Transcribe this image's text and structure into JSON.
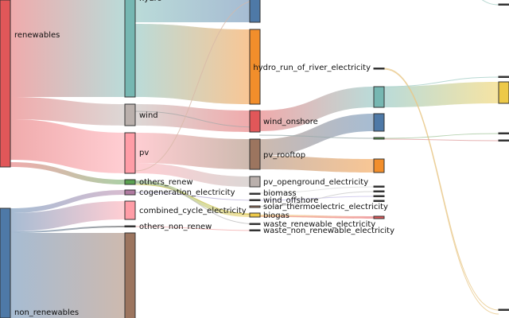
{
  "chart_data": {
    "type": "sankey",
    "title": "",
    "nodes": [
      {
        "id": "renewables",
        "label": "renewables",
        "color": "#e15759"
      },
      {
        "id": "non_renewables",
        "label": "non_renewables",
        "color": "#4e79a7"
      },
      {
        "id": "hydro",
        "label": "hydro",
        "color": "#76b7b2"
      },
      {
        "id": "wind",
        "label": "wind",
        "color": "#bab0ac"
      },
      {
        "id": "pv",
        "label": "pv",
        "color": "#ff9da7"
      },
      {
        "id": "others_renew",
        "label": "others_renew",
        "color": "#59a14f"
      },
      {
        "id": "cogeneration_electricity",
        "label": "cogeneration_electricity",
        "color": "#b07aa1"
      },
      {
        "id": "combined_cycle_electricity",
        "label": "combined_cycle_electricity",
        "color": "#ff9da7"
      },
      {
        "id": "others_non_renew",
        "label": "others_non_renew",
        "color": "#333333"
      },
      {
        "id": "nuclear",
        "label": "",
        "color": "#9c755f"
      },
      {
        "id": "hydro_reservoir",
        "label": "",
        "color": "#4e79a7"
      },
      {
        "id": "hydro_other",
        "label": "",
        "color": "#f28e2b"
      },
      {
        "id": "wind_onshore",
        "label": "wind_onshore",
        "color": "#e15759"
      },
      {
        "id": "pv_rooftop",
        "label": "pv_rooftop",
        "color": "#9c755f"
      },
      {
        "id": "pv_openground_electricity",
        "label": "pv_openground_electricity",
        "color": "#bab0ac"
      },
      {
        "id": "biomass",
        "label": "biomass",
        "color": "#333333"
      },
      {
        "id": "wind_offshore",
        "label": "wind_offshore",
        "color": "#333333"
      },
      {
        "id": "solar_thermoelectric_electricity",
        "label": "solar_thermoelectric_electricity",
        "color": "#9c755f"
      },
      {
        "id": "biogas",
        "label": "biogas",
        "color": "#edc948"
      },
      {
        "id": "waste_renewable_electricity",
        "label": "waste_renewable_electricity",
        "color": "#333333"
      },
      {
        "id": "waste_non_renewable_electricity",
        "label": "waste_non_renewable_electricity",
        "color": "#333333"
      },
      {
        "id": "hydro_run_of_river_electricity",
        "label": "hydro_run_of_river_electricity",
        "color": "#333333"
      },
      {
        "id": "c3_teal",
        "label": "",
        "color": "#76b7b2"
      },
      {
        "id": "c3_blue",
        "label": "",
        "color": "#4e79a7"
      },
      {
        "id": "c3_green",
        "label": "",
        "color": "#59a14f"
      },
      {
        "id": "c3_orange",
        "label": "",
        "color": "#f28e2b"
      },
      {
        "id": "c3_a",
        "label": "",
        "color": "#333333"
      },
      {
        "id": "c3_b",
        "label": "",
        "color": "#333333"
      },
      {
        "id": "c3_c",
        "label": "",
        "color": "#333333"
      },
      {
        "id": "c3_d",
        "label": "",
        "color": "#333333"
      },
      {
        "id": "c3_pink",
        "label": "",
        "color": "#e15759"
      },
      {
        "id": "c4_top",
        "label": "",
        "color": "#333333"
      },
      {
        "id": "c4_a",
        "label": "",
        "color": "#333333"
      },
      {
        "id": "c4_yellow",
        "label": "",
        "color": "#edc948"
      },
      {
        "id": "c4_b",
        "label": "",
        "color": "#333333"
      },
      {
        "id": "c4_c",
        "label": "",
        "color": "#333333"
      },
      {
        "id": "c4_bottom",
        "label": "",
        "color": "#333333"
      }
    ],
    "links": [
      {
        "source": "renewables",
        "target": "hydro",
        "value": 122
      },
      {
        "source": "renewables",
        "target": "wind",
        "value": 27
      },
      {
        "source": "renewables",
        "target": "pv",
        "value": 51
      },
      {
        "source": "renewables",
        "target": "others_renew",
        "value": 6
      },
      {
        "source": "non_renewables",
        "target": "cogeneration_electricity",
        "value": 6
      },
      {
        "source": "non_renewables",
        "target": "combined_cycle_electricity",
        "value": 23
      },
      {
        "source": "non_renewables",
        "target": "others_non_renew",
        "value": 2
      },
      {
        "source": "non_renewables",
        "target": "nuclear",
        "value": 107
      },
      {
        "source": "hydro",
        "target": "hydro_reservoir",
        "value": 28
      },
      {
        "source": "hydro",
        "target": "hydro_other",
        "value": 94
      },
      {
        "source": "wind",
        "target": "wind_onshore",
        "value": 27
      },
      {
        "source": "pv",
        "target": "pv_rooftop",
        "value": 38
      },
      {
        "source": "pv",
        "target": "pv_openground_electricity",
        "value": 13
      },
      {
        "source": "wind_onshore",
        "target": "c3_teal",
        "value": 26
      },
      {
        "source": "pv_rooftop",
        "target": "c3_blue",
        "value": 22
      },
      {
        "source": "pv_rooftop",
        "target": "c3_orange",
        "value": 17
      },
      {
        "source": "c3_teal",
        "target": "c4_yellow",
        "value": 27
      },
      {
        "source": "others_renew",
        "target": "biogas",
        "value": 5
      },
      {
        "source": "biogas",
        "target": "c3_pink",
        "value": 3
      }
    ]
  }
}
